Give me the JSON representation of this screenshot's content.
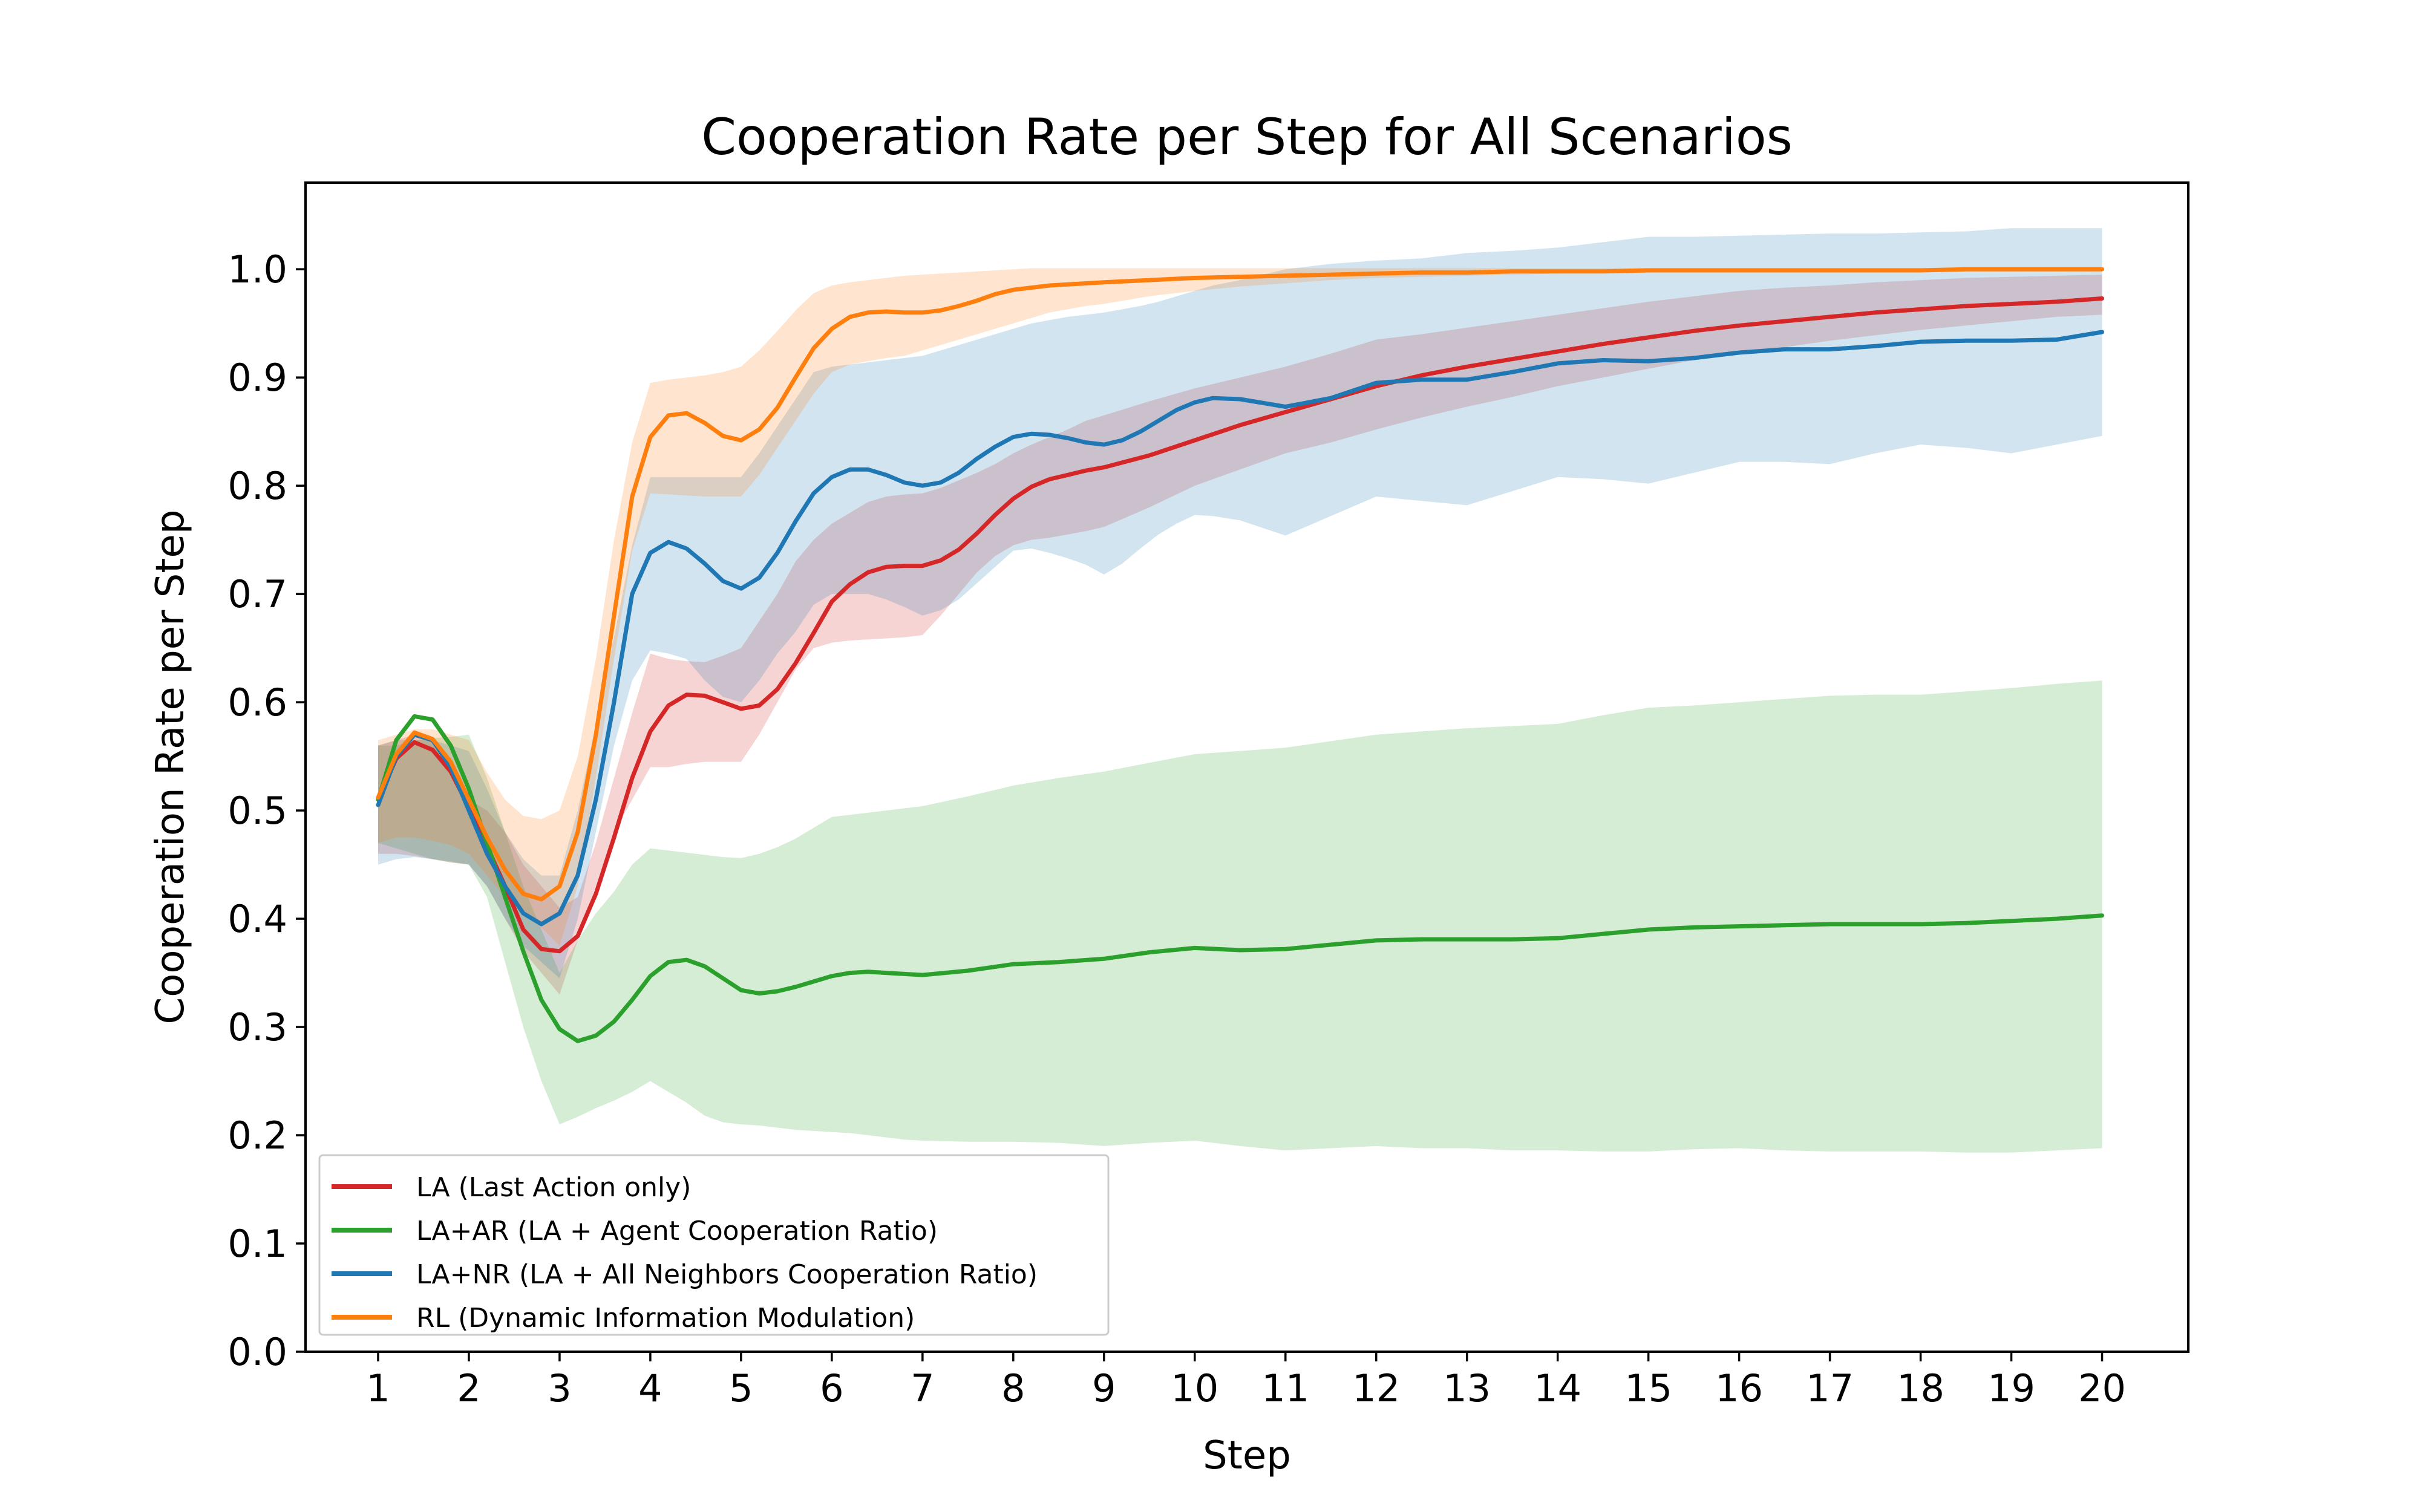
{
  "chart_data": {
    "type": "line",
    "title": "Cooperation Rate per Step for All Scenarios",
    "xlabel": "Step",
    "ylabel": "Cooperation Rate per Step",
    "xlim": [
      0.2,
      20.95
    ],
    "ylim": [
      0.0,
      1.08
    ],
    "xticks": [
      "1",
      "2",
      "3",
      "4",
      "5",
      "6",
      "7",
      "8",
      "9",
      "10",
      "11",
      "12",
      "13",
      "14",
      "15",
      "16",
      "17",
      "18",
      "19",
      "20"
    ],
    "yticks": [
      "0.0",
      "0.1",
      "0.2",
      "0.3",
      "0.4",
      "0.5",
      "0.6",
      "0.7",
      "0.8",
      "0.9",
      "1.0"
    ],
    "legend_position": "lower-left",
    "series": [
      {
        "name": "LA (Last Action only)",
        "color": "#d62728",
        "x": [
          1,
          1.2,
          1.4,
          1.6,
          1.8,
          2,
          2.2,
          2.4,
          2.6,
          2.8,
          3,
          3.2,
          3.4,
          3.6,
          3.8,
          4,
          4.2,
          4.4,
          4.6,
          4.8,
          5,
          5.2,
          5.4,
          5.6,
          5.8,
          6,
          6.2,
          6.4,
          6.6,
          6.8,
          7,
          7.2,
          7.4,
          7.6,
          7.8,
          8,
          8.2,
          8.4,
          8.6,
          8.8,
          9,
          9.5,
          10,
          10.5,
          11,
          11.5,
          12,
          12.5,
          13,
          13.5,
          14,
          14.5,
          15,
          15.5,
          16,
          16.5,
          17,
          17.5,
          18,
          18.5,
          19,
          19.5,
          20
        ],
        "y": [
          0.51,
          0.548,
          0.563,
          0.556,
          0.536,
          0.503,
          0.467,
          0.43,
          0.39,
          0.372,
          0.37,
          0.384,
          0.423,
          0.475,
          0.53,
          0.573,
          0.597,
          0.607,
          0.606,
          0.6,
          0.594,
          0.597,
          0.612,
          0.636,
          0.664,
          0.693,
          0.709,
          0.72,
          0.725,
          0.726,
          0.726,
          0.731,
          0.741,
          0.756,
          0.773,
          0.788,
          0.799,
          0.806,
          0.81,
          0.814,
          0.817,
          0.828,
          0.842,
          0.856,
          0.868,
          0.88,
          0.892,
          0.902,
          0.91,
          0.917,
          0.924,
          0.931,
          0.937,
          0.943,
          0.948,
          0.952,
          0.956,
          0.96,
          0.963,
          0.966,
          0.968,
          0.97,
          0.973
        ],
        "lower": [
          0.46,
          0.46,
          0.458,
          0.455,
          0.452,
          0.45,
          0.43,
          0.4,
          0.37,
          0.35,
          0.33,
          0.38,
          0.43,
          0.48,
          0.51,
          0.54,
          0.54,
          0.543,
          0.545,
          0.545,
          0.545,
          0.57,
          0.6,
          0.63,
          0.65,
          0.655,
          0.657,
          0.658,
          0.659,
          0.66,
          0.662,
          0.68,
          0.7,
          0.72,
          0.735,
          0.745,
          0.75,
          0.752,
          0.755,
          0.758,
          0.762,
          0.78,
          0.8,
          0.815,
          0.83,
          0.84,
          0.852,
          0.863,
          0.873,
          0.882,
          0.892,
          0.9,
          0.908,
          0.916,
          0.922,
          0.928,
          0.934,
          0.939,
          0.944,
          0.948,
          0.952,
          0.956,
          0.958
        ],
        "upper": [
          0.56,
          0.565,
          0.57,
          0.565,
          0.545,
          0.51,
          0.5,
          0.48,
          0.45,
          0.43,
          0.41,
          0.42,
          0.47,
          0.53,
          0.59,
          0.645,
          0.64,
          0.638,
          0.637,
          0.643,
          0.65,
          0.675,
          0.7,
          0.73,
          0.75,
          0.765,
          0.775,
          0.785,
          0.79,
          0.792,
          0.793,
          0.798,
          0.805,
          0.812,
          0.82,
          0.83,
          0.838,
          0.845,
          0.852,
          0.86,
          0.865,
          0.878,
          0.89,
          0.9,
          0.91,
          0.922,
          0.935,
          0.94,
          0.946,
          0.952,
          0.958,
          0.964,
          0.97,
          0.975,
          0.98,
          0.983,
          0.985,
          0.988,
          0.99,
          0.992,
          0.993,
          0.994,
          0.995
        ]
      },
      {
        "name": "LA+AR (LA + Agent Cooperation Ratio)",
        "color": "#2ca02c",
        "x": [
          1,
          1.2,
          1.4,
          1.6,
          1.8,
          2,
          2.2,
          2.4,
          2.6,
          2.8,
          3,
          3.2,
          3.4,
          3.6,
          3.8,
          4,
          4.2,
          4.4,
          4.6,
          4.8,
          5,
          5.2,
          5.4,
          5.6,
          5.8,
          6,
          6.2,
          6.4,
          6.6,
          6.8,
          7,
          7.5,
          8,
          8.5,
          9,
          9.5,
          10,
          10.5,
          11,
          11.5,
          12,
          12.5,
          13,
          13.5,
          14,
          14.5,
          15,
          15.5,
          16,
          16.5,
          17,
          17.5,
          18,
          18.5,
          19,
          19.5,
          20
        ],
        "y": [
          0.51,
          0.565,
          0.587,
          0.584,
          0.56,
          0.52,
          0.47,
          0.42,
          0.37,
          0.325,
          0.298,
          0.287,
          0.292,
          0.305,
          0.325,
          0.347,
          0.36,
          0.362,
          0.356,
          0.345,
          0.334,
          0.331,
          0.333,
          0.337,
          0.342,
          0.347,
          0.35,
          0.351,
          0.35,
          0.349,
          0.348,
          0.352,
          0.358,
          0.36,
          0.363,
          0.369,
          0.373,
          0.371,
          0.372,
          0.376,
          0.38,
          0.381,
          0.381,
          0.381,
          0.382,
          0.386,
          0.39,
          0.392,
          0.393,
          0.394,
          0.395,
          0.395,
          0.395,
          0.396,
          0.398,
          0.4,
          0.403
        ],
        "lower": [
          0.47,
          0.465,
          0.46,
          0.455,
          0.452,
          0.45,
          0.42,
          0.36,
          0.3,
          0.25,
          0.21,
          0.217,
          0.225,
          0.232,
          0.24,
          0.25,
          0.24,
          0.23,
          0.218,
          0.212,
          0.21,
          0.209,
          0.207,
          0.205,
          0.204,
          0.203,
          0.202,
          0.2,
          0.198,
          0.196,
          0.195,
          0.194,
          0.194,
          0.193,
          0.19,
          0.193,
          0.195,
          0.19,
          0.186,
          0.188,
          0.19,
          0.188,
          0.188,
          0.186,
          0.186,
          0.185,
          0.185,
          0.187,
          0.188,
          0.186,
          0.185,
          0.185,
          0.185,
          0.184,
          0.184,
          0.186,
          0.188
        ],
        "upper": [
          0.56,
          0.56,
          0.565,
          0.567,
          0.568,
          0.57,
          0.53,
          0.48,
          0.43,
          0.39,
          0.35,
          0.38,
          0.405,
          0.425,
          0.45,
          0.465,
          0.463,
          0.461,
          0.459,
          0.457,
          0.456,
          0.46,
          0.466,
          0.474,
          0.484,
          0.494,
          0.496,
          0.498,
          0.5,
          0.502,
          0.504,
          0.513,
          0.523,
          0.53,
          0.536,
          0.544,
          0.552,
          0.555,
          0.558,
          0.564,
          0.57,
          0.573,
          0.576,
          0.578,
          0.58,
          0.588,
          0.595,
          0.597,
          0.6,
          0.603,
          0.606,
          0.607,
          0.607,
          0.61,
          0.613,
          0.617,
          0.62
        ]
      },
      {
        "name": "LA+NR (LA + All Neighbors Cooperation Ratio)",
        "color": "#1f77b4",
        "x": [
          1,
          1.2,
          1.4,
          1.6,
          1.8,
          2,
          2.2,
          2.4,
          2.6,
          2.8,
          3,
          3.2,
          3.4,
          3.6,
          3.8,
          4,
          4.2,
          4.4,
          4.6,
          4.8,
          5,
          5.2,
          5.4,
          5.6,
          5.8,
          6,
          6.2,
          6.4,
          6.6,
          6.8,
          7,
          7.2,
          7.4,
          7.6,
          7.8,
          8,
          8.2,
          8.4,
          8.6,
          8.8,
          9,
          9.2,
          9.4,
          9.6,
          9.8,
          10,
          10.2,
          10.5,
          11,
          11.5,
          12,
          12.5,
          13,
          13.5,
          14,
          14.5,
          15,
          15.5,
          16,
          16.5,
          17,
          17.5,
          18,
          18.5,
          19,
          19.5,
          20
        ],
        "y": [
          0.505,
          0.55,
          0.57,
          0.565,
          0.54,
          0.5,
          0.46,
          0.43,
          0.405,
          0.395,
          0.405,
          0.44,
          0.51,
          0.6,
          0.7,
          0.738,
          0.748,
          0.742,
          0.728,
          0.712,
          0.705,
          0.715,
          0.738,
          0.767,
          0.793,
          0.808,
          0.815,
          0.815,
          0.81,
          0.803,
          0.8,
          0.803,
          0.812,
          0.825,
          0.836,
          0.845,
          0.848,
          0.847,
          0.844,
          0.84,
          0.838,
          0.842,
          0.85,
          0.86,
          0.87,
          0.877,
          0.881,
          0.88,
          0.873,
          0.881,
          0.895,
          0.898,
          0.898,
          0.905,
          0.913,
          0.916,
          0.915,
          0.918,
          0.923,
          0.926,
          0.926,
          0.929,
          0.933,
          0.934,
          0.934,
          0.935,
          0.942
        ],
        "lower": [
          0.45,
          0.455,
          0.457,
          0.455,
          0.453,
          0.45,
          0.43,
          0.4,
          0.375,
          0.36,
          0.345,
          0.4,
          0.48,
          0.56,
          0.62,
          0.648,
          0.645,
          0.64,
          0.62,
          0.605,
          0.6,
          0.62,
          0.645,
          0.665,
          0.69,
          0.7,
          0.7,
          0.7,
          0.695,
          0.688,
          0.68,
          0.685,
          0.695,
          0.71,
          0.725,
          0.74,
          0.742,
          0.738,
          0.733,
          0.727,
          0.718,
          0.728,
          0.742,
          0.755,
          0.765,
          0.773,
          0.772,
          0.768,
          0.754,
          0.772,
          0.79,
          0.786,
          0.782,
          0.795,
          0.808,
          0.806,
          0.802,
          0.812,
          0.822,
          0.822,
          0.82,
          0.83,
          0.838,
          0.835,
          0.83,
          0.838,
          0.846
        ],
        "upper": [
          0.56,
          0.565,
          0.565,
          0.565,
          0.56,
          0.555,
          0.52,
          0.48,
          0.455,
          0.44,
          0.44,
          0.5,
          0.58,
          0.66,
          0.745,
          0.808,
          0.808,
          0.808,
          0.808,
          0.808,
          0.808,
          0.83,
          0.855,
          0.88,
          0.905,
          0.91,
          0.912,
          0.914,
          0.916,
          0.918,
          0.92,
          0.925,
          0.93,
          0.935,
          0.94,
          0.945,
          0.95,
          0.953,
          0.956,
          0.958,
          0.96,
          0.963,
          0.966,
          0.97,
          0.975,
          0.98,
          0.985,
          0.99,
          1.0,
          1.005,
          1.008,
          1.01,
          1.015,
          1.017,
          1.02,
          1.025,
          1.03,
          1.03,
          1.031,
          1.032,
          1.033,
          1.033,
          1.034,
          1.035,
          1.038,
          1.038,
          1.038
        ]
      },
      {
        "name": "RL (Dynamic Information Modulation)",
        "color": "#ff7f0e",
        "x": [
          1,
          1.2,
          1.4,
          1.6,
          1.8,
          2,
          2.2,
          2.4,
          2.6,
          2.8,
          3,
          3.2,
          3.4,
          3.6,
          3.8,
          4,
          4.2,
          4.4,
          4.6,
          4.8,
          5,
          5.2,
          5.4,
          5.6,
          5.8,
          6,
          6.2,
          6.4,
          6.6,
          6.8,
          7,
          7.2,
          7.4,
          7.6,
          7.8,
          8,
          8.2,
          8.4,
          8.6,
          8.8,
          9,
          9.5,
          10,
          10.5,
          11,
          11.5,
          12,
          12.5,
          13,
          13.5,
          14,
          14.5,
          15,
          15.5,
          16,
          16.5,
          17,
          17.5,
          18,
          18.5,
          19,
          19.5,
          20
        ],
        "y": [
          0.512,
          0.552,
          0.572,
          0.566,
          0.545,
          0.51,
          0.475,
          0.445,
          0.423,
          0.418,
          0.43,
          0.48,
          0.57,
          0.68,
          0.79,
          0.845,
          0.865,
          0.867,
          0.858,
          0.846,
          0.842,
          0.852,
          0.872,
          0.9,
          0.927,
          0.945,
          0.956,
          0.96,
          0.961,
          0.96,
          0.96,
          0.962,
          0.966,
          0.971,
          0.977,
          0.981,
          0.983,
          0.985,
          0.986,
          0.987,
          0.988,
          0.99,
          0.992,
          0.993,
          0.994,
          0.995,
          0.996,
          0.997,
          0.997,
          0.998,
          0.998,
          0.998,
          0.999,
          0.999,
          0.999,
          0.999,
          0.999,
          0.999,
          0.999,
          1.0,
          1.0,
          1.0,
          1.0
        ],
        "lower": [
          0.47,
          0.475,
          0.475,
          0.472,
          0.468,
          0.46,
          0.44,
          0.42,
          0.405,
          0.392,
          0.375,
          0.43,
          0.53,
          0.64,
          0.74,
          0.793,
          0.792,
          0.791,
          0.79,
          0.79,
          0.79,
          0.81,
          0.835,
          0.86,
          0.885,
          0.905,
          0.912,
          0.915,
          0.918,
          0.92,
          0.925,
          0.93,
          0.935,
          0.94,
          0.945,
          0.95,
          0.955,
          0.96,
          0.963,
          0.966,
          0.968,
          0.975,
          0.98,
          0.984,
          0.987,
          0.99,
          0.992,
          0.993,
          0.994,
          0.995,
          0.996,
          0.997,
          0.997,
          0.998,
          0.998,
          0.998,
          0.999,
          0.999,
          0.999,
          0.999,
          0.999,
          0.999,
          0.999
        ],
        "upper": [
          0.565,
          0.57,
          0.575,
          0.575,
          0.57,
          0.565,
          0.535,
          0.51,
          0.495,
          0.492,
          0.5,
          0.55,
          0.64,
          0.75,
          0.84,
          0.895,
          0.898,
          0.9,
          0.902,
          0.905,
          0.91,
          0.925,
          0.943,
          0.962,
          0.978,
          0.985,
          0.988,
          0.99,
          0.992,
          0.994,
          0.995,
          0.996,
          0.997,
          0.998,
          0.999,
          1.0,
          1.001,
          1.001,
          1.001,
          1.001,
          1.001,
          1.001,
          1.001,
          1.001,
          1.001,
          1.001,
          1.001,
          1.001,
          1.001,
          1.001,
          1.001,
          1.001,
          1.001,
          1.001,
          1.001,
          1.001,
          1.001,
          1.001,
          1.001,
          1.001,
          1.001,
          1.001,
          1.001
        ]
      }
    ]
  }
}
